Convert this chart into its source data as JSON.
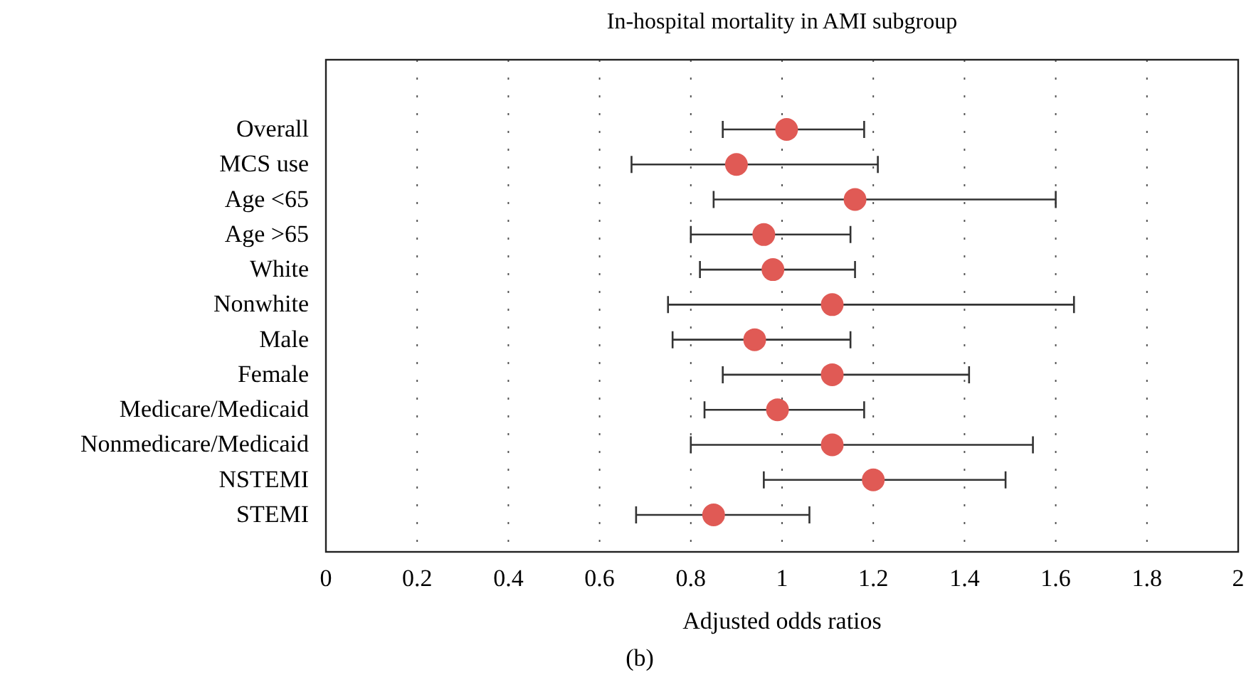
{
  "chart_data": {
    "type": "scatter",
    "orientation": "horizontal",
    "title": "In-hospital mortality in AMI subgroup",
    "xlabel": "Adjusted odds ratios",
    "annotations": [
      "(b)"
    ],
    "categories": [
      "Overall",
      "MCS use",
      "Age <65",
      "Age >65",
      "White",
      "Nonwhite",
      "Male",
      "Female",
      "Medicare/Medicaid",
      "Nonmedicare/Medicaid",
      "NSTEMI",
      "STEMI"
    ],
    "values": [
      1.01,
      0.9,
      1.16,
      0.96,
      0.98,
      1.11,
      0.94,
      1.11,
      0.99,
      1.11,
      1.2,
      0.85
    ],
    "errors": [
      [
        0.87,
        1.18
      ],
      [
        0.67,
        1.21
      ],
      [
        0.85,
        1.6
      ],
      [
        0.8,
        1.15
      ],
      [
        0.82,
        1.16
      ],
      [
        0.75,
        1.64
      ],
      [
        0.76,
        1.15
      ],
      [
        0.87,
        1.41
      ],
      [
        0.83,
        1.18
      ],
      [
        0.8,
        1.55
      ],
      [
        0.96,
        1.49
      ],
      [
        0.68,
        1.06
      ]
    ],
    "color": "#e05a55",
    "marker": "circle",
    "grid": "x",
    "xlim": [
      0,
      2
    ],
    "xticks": [
      0,
      0.2,
      0.4,
      0.6,
      0.8,
      1,
      1.2,
      1.4,
      1.6,
      1.8,
      2
    ]
  }
}
